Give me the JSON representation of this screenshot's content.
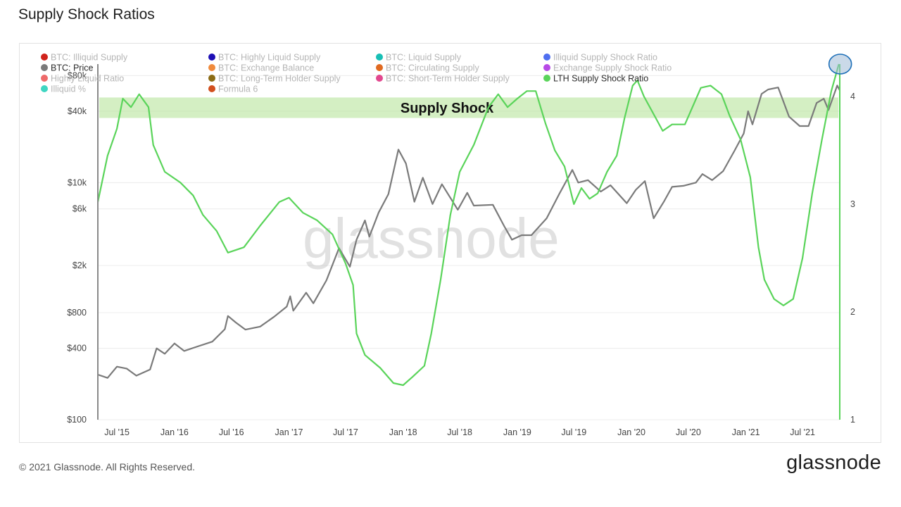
{
  "page": {
    "title": "Supply Shock Ratios",
    "copyright": "© 2021 Glassnode. All Rights Reserved.",
    "brand": "glassnode",
    "watermark": "glassnode"
  },
  "chart_data": {
    "type": "line",
    "title": "Supply Shock Ratios",
    "highlight_label": "Supply Shock",
    "y_left": {
      "scale": "log",
      "range": [
        100,
        100000
      ],
      "ticks": [
        {
          "value": 100,
          "label": "$100"
        },
        {
          "value": 400,
          "label": "$400"
        },
        {
          "value": 800,
          "label": "$800"
        },
        {
          "value": 2000,
          "label": "$2k"
        },
        {
          "value": 6000,
          "label": "$6k"
        },
        {
          "value": 10000,
          "label": "$10k"
        },
        {
          "value": 40000,
          "label": "$40k"
        },
        {
          "value": 80000,
          "label": "$80k"
        }
      ]
    },
    "y_right": {
      "scale": "linear",
      "range": [
        1,
        4.3
      ],
      "ticks": [
        {
          "value": 1,
          "label": "1"
        },
        {
          "value": 2,
          "label": "2"
        },
        {
          "value": 3,
          "label": "3"
        },
        {
          "value": 4,
          "label": "4"
        }
      ]
    },
    "x_axis": {
      "range": [
        "2015-05-01",
        "2021-10-28"
      ],
      "ticks": [
        {
          "date": "2015-07-01",
          "label": "Jul '15"
        },
        {
          "date": "2016-01-01",
          "label": "Jan '16"
        },
        {
          "date": "2016-07-01",
          "label": "Jul '16"
        },
        {
          "date": "2017-01-01",
          "label": "Jan '17"
        },
        {
          "date": "2017-07-01",
          "label": "Jul '17"
        },
        {
          "date": "2018-01-01",
          "label": "Jan '18"
        },
        {
          "date": "2018-07-01",
          "label": "Jul '18"
        },
        {
          "date": "2019-01-01",
          "label": "Jan '19"
        },
        {
          "date": "2019-07-01",
          "label": "Jul '19"
        },
        {
          "date": "2020-01-01",
          "label": "Jan '20"
        },
        {
          "date": "2020-07-01",
          "label": "Jul '20"
        },
        {
          "date": "2021-01-01",
          "label": "Jan '21"
        },
        {
          "date": "2021-07-01",
          "label": "Jul '21"
        }
      ]
    },
    "grid": true,
    "highlight_band": {
      "axis": "right",
      "from": 3.8,
      "to": 3.99,
      "color": "#b8e59b"
    },
    "legend": [
      {
        "name": "BTC: Illiquid Supply",
        "color": "#d0231c",
        "active": false
      },
      {
        "name": "BTC: Highly Liquid Supply",
        "color": "#1d0fb5",
        "active": false
      },
      {
        "name": "BTC: Liquid Supply",
        "color": "#18bfb5",
        "active": false
      },
      {
        "name": "Illiquid Supply Shock Ratio",
        "color": "#4f6ff0",
        "active": false
      },
      {
        "name": "BTC: Price",
        "color": "#7a7a7a",
        "active": true
      },
      {
        "name": "BTC: Exchange Balance",
        "color": "#f08a3c",
        "active": false
      },
      {
        "name": "BTC: Circulating Supply",
        "color": "#e06a21",
        "active": false
      },
      {
        "name": "Exchange Supply Shock Ratio",
        "color": "#b74ae6",
        "active": false
      },
      {
        "name": "Highly Liquid Ratio",
        "color": "#ee6a6a",
        "active": false
      },
      {
        "name": "BTC: Long-Term Holder Supply",
        "color": "#8b6b14",
        "active": false
      },
      {
        "name": "BTC: Short-Term Holder Supply",
        "color": "#e2478e",
        "active": false
      },
      {
        "name": "LTH Supply Shock Ratio",
        "color": "#5ad45a",
        "active": true
      },
      {
        "name": "Illiquid %",
        "color": "#3fd6c2",
        "active": false
      },
      {
        "name": "Formula 6",
        "color": "#d24f1e",
        "active": false
      }
    ],
    "series": [
      {
        "name": "BTC: Price",
        "axis": "left",
        "color": "#7a7a7a",
        "points": [
          [
            "2015-05-01",
            240
          ],
          [
            "2015-06-01",
            225
          ],
          [
            "2015-07-01",
            280
          ],
          [
            "2015-08-01",
            270
          ],
          [
            "2015-09-01",
            235
          ],
          [
            "2015-10-15",
            265
          ],
          [
            "2015-11-05",
            400
          ],
          [
            "2015-12-01",
            360
          ],
          [
            "2016-01-01",
            440
          ],
          [
            "2016-02-01",
            380
          ],
          [
            "2016-03-15",
            415
          ],
          [
            "2016-05-01",
            455
          ],
          [
            "2016-06-10",
            580
          ],
          [
            "2016-06-20",
            750
          ],
          [
            "2016-07-15",
            660
          ],
          [
            "2016-08-15",
            575
          ],
          [
            "2016-10-01",
            610
          ],
          [
            "2016-11-15",
            740
          ],
          [
            "2016-12-25",
            900
          ],
          [
            "2017-01-05",
            1100
          ],
          [
            "2017-01-15",
            830
          ],
          [
            "2017-02-25",
            1180
          ],
          [
            "2017-03-20",
            960
          ],
          [
            "2017-05-01",
            1500
          ],
          [
            "2017-06-10",
            2800
          ],
          [
            "2017-07-15",
            1950
          ],
          [
            "2017-08-05",
            3300
          ],
          [
            "2017-09-01",
            4800
          ],
          [
            "2017-09-15",
            3500
          ],
          [
            "2017-10-15",
            5600
          ],
          [
            "2017-11-15",
            8000
          ],
          [
            "2017-12-17",
            19000
          ],
          [
            "2018-01-10",
            14500
          ],
          [
            "2018-02-06",
            6900
          ],
          [
            "2018-03-05",
            11000
          ],
          [
            "2018-04-05",
            6600
          ],
          [
            "2018-05-05",
            9700
          ],
          [
            "2018-06-25",
            5900
          ],
          [
            "2018-07-25",
            8200
          ],
          [
            "2018-08-15",
            6400
          ],
          [
            "2018-10-15",
            6500
          ],
          [
            "2018-11-20",
            4300
          ],
          [
            "2018-12-15",
            3300
          ],
          [
            "2019-01-15",
            3600
          ],
          [
            "2019-02-15",
            3600
          ],
          [
            "2019-04-05",
            5000
          ],
          [
            "2019-05-15",
            8000
          ],
          [
            "2019-06-26",
            12800
          ],
          [
            "2019-07-15",
            10000
          ],
          [
            "2019-08-15",
            10500
          ],
          [
            "2019-09-25",
            8400
          ],
          [
            "2019-10-26",
            9500
          ],
          [
            "2019-12-17",
            6700
          ],
          [
            "2020-01-15",
            8700
          ],
          [
            "2020-02-13",
            10300
          ],
          [
            "2020-03-12",
            5000
          ],
          [
            "2020-04-15",
            7000
          ],
          [
            "2020-05-10",
            9200
          ],
          [
            "2020-06-15",
            9400
          ],
          [
            "2020-07-25",
            10000
          ],
          [
            "2020-08-15",
            11800
          ],
          [
            "2020-09-15",
            10500
          ],
          [
            "2020-10-20",
            12500
          ],
          [
            "2020-11-25",
            18500
          ],
          [
            "2020-12-25",
            26000
          ],
          [
            "2021-01-08",
            40000
          ],
          [
            "2021-01-22",
            31000
          ],
          [
            "2021-02-20",
            56000
          ],
          [
            "2021-03-13",
            61000
          ],
          [
            "2021-04-14",
            63500
          ],
          [
            "2021-05-19",
            36000
          ],
          [
            "2021-06-22",
            30000
          ],
          [
            "2021-07-20",
            30000
          ],
          [
            "2021-08-15",
            47000
          ],
          [
            "2021-09-07",
            51000
          ],
          [
            "2021-09-22",
            41000
          ],
          [
            "2021-10-20",
            66000
          ],
          [
            "2021-10-28",
            60000
          ]
        ]
      },
      {
        "name": "LTH Supply Shock Ratio",
        "axis": "right",
        "color": "#5ad45a",
        "points": [
          [
            "2015-05-01",
            3.02
          ],
          [
            "2015-06-01",
            3.45
          ],
          [
            "2015-07-01",
            3.7
          ],
          [
            "2015-07-20",
            3.98
          ],
          [
            "2015-08-15",
            3.9
          ],
          [
            "2015-09-10",
            4.02
          ],
          [
            "2015-10-10",
            3.9
          ],
          [
            "2015-10-25",
            3.55
          ],
          [
            "2015-12-01",
            3.3
          ],
          [
            "2016-01-20",
            3.2
          ],
          [
            "2016-03-01",
            3.08
          ],
          [
            "2016-04-01",
            2.9
          ],
          [
            "2016-05-15",
            2.75
          ],
          [
            "2016-06-20",
            2.55
          ],
          [
            "2016-08-10",
            2.6
          ],
          [
            "2016-10-01",
            2.8
          ],
          [
            "2016-12-01",
            3.02
          ],
          [
            "2017-01-01",
            3.06
          ],
          [
            "2017-02-15",
            2.92
          ],
          [
            "2017-04-01",
            2.85
          ],
          [
            "2017-05-20",
            2.72
          ],
          [
            "2017-07-01",
            2.45
          ],
          [
            "2017-07-25",
            2.25
          ],
          [
            "2017-08-05",
            1.8
          ],
          [
            "2017-09-01",
            1.6
          ],
          [
            "2017-10-20",
            1.48
          ],
          [
            "2017-12-01",
            1.34
          ],
          [
            "2018-01-01",
            1.32
          ],
          [
            "2018-02-01",
            1.4
          ],
          [
            "2018-03-10",
            1.5
          ],
          [
            "2018-04-01",
            1.8
          ],
          [
            "2018-05-01",
            2.3
          ],
          [
            "2018-06-01",
            2.9
          ],
          [
            "2018-07-01",
            3.3
          ],
          [
            "2018-08-15",
            3.55
          ],
          [
            "2018-10-01",
            3.9
          ],
          [
            "2018-11-01",
            4.02
          ],
          [
            "2018-12-01",
            3.9
          ],
          [
            "2019-01-01",
            3.98
          ],
          [
            "2019-02-01",
            4.05
          ],
          [
            "2019-03-01",
            4.05
          ],
          [
            "2019-04-01",
            3.75
          ],
          [
            "2019-05-01",
            3.5
          ],
          [
            "2019-06-01",
            3.35
          ],
          [
            "2019-07-01",
            3.0
          ],
          [
            "2019-07-25",
            3.15
          ],
          [
            "2019-08-20",
            3.05
          ],
          [
            "2019-09-15",
            3.1
          ],
          [
            "2019-10-15",
            3.3
          ],
          [
            "2019-11-15",
            3.45
          ],
          [
            "2019-12-10",
            3.8
          ],
          [
            "2020-01-05",
            4.1
          ],
          [
            "2020-01-20",
            4.15
          ],
          [
            "2020-02-10",
            4.0
          ],
          [
            "2020-03-15",
            3.82
          ],
          [
            "2020-04-10",
            3.68
          ],
          [
            "2020-05-10",
            3.74
          ],
          [
            "2020-06-20",
            3.74
          ],
          [
            "2020-08-10",
            4.08
          ],
          [
            "2020-09-10",
            4.1
          ],
          [
            "2020-10-15",
            4.02
          ],
          [
            "2020-11-10",
            3.82
          ],
          [
            "2020-12-15",
            3.6
          ],
          [
            "2021-01-15",
            3.25
          ],
          [
            "2021-02-10",
            2.6
          ],
          [
            "2021-03-01",
            2.3
          ],
          [
            "2021-04-01",
            2.12
          ],
          [
            "2021-05-01",
            2.06
          ],
          [
            "2021-06-01",
            2.12
          ],
          [
            "2021-07-01",
            2.5
          ],
          [
            "2021-08-01",
            3.1
          ],
          [
            "2021-09-01",
            3.6
          ],
          [
            "2021-10-01",
            4.05
          ],
          [
            "2021-10-25",
            4.3
          ]
        ]
      }
    ]
  }
}
